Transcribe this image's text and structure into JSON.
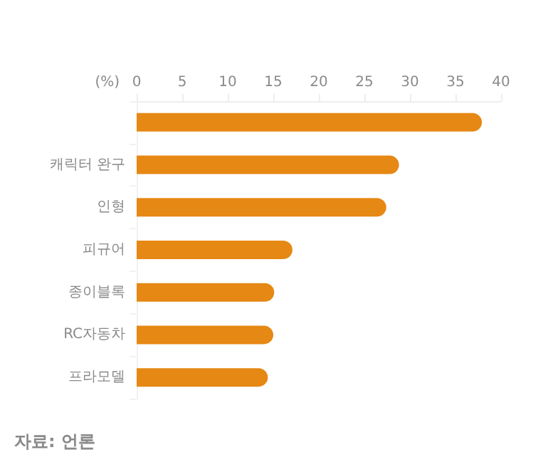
{
  "chart_data": {
    "type": "bar",
    "orientation": "horizontal",
    "xlabel": "(%)",
    "categories": [
      null,
      "캐릭터 완구",
      "인형",
      "피규어",
      "종이블록",
      "RC자동차",
      "프라모델"
    ],
    "values": [
      37.9,
      28.8,
      27.4,
      17.1,
      15.1,
      15,
      14.4
    ],
    "color": "#e68814",
    "xlim": [
      0,
      40
    ],
    "xticks": [
      0,
      5,
      10,
      15,
      20,
      25,
      30,
      35,
      40
    ],
    "grid": false,
    "annotations": [
      "자료: 언론"
    ]
  }
}
